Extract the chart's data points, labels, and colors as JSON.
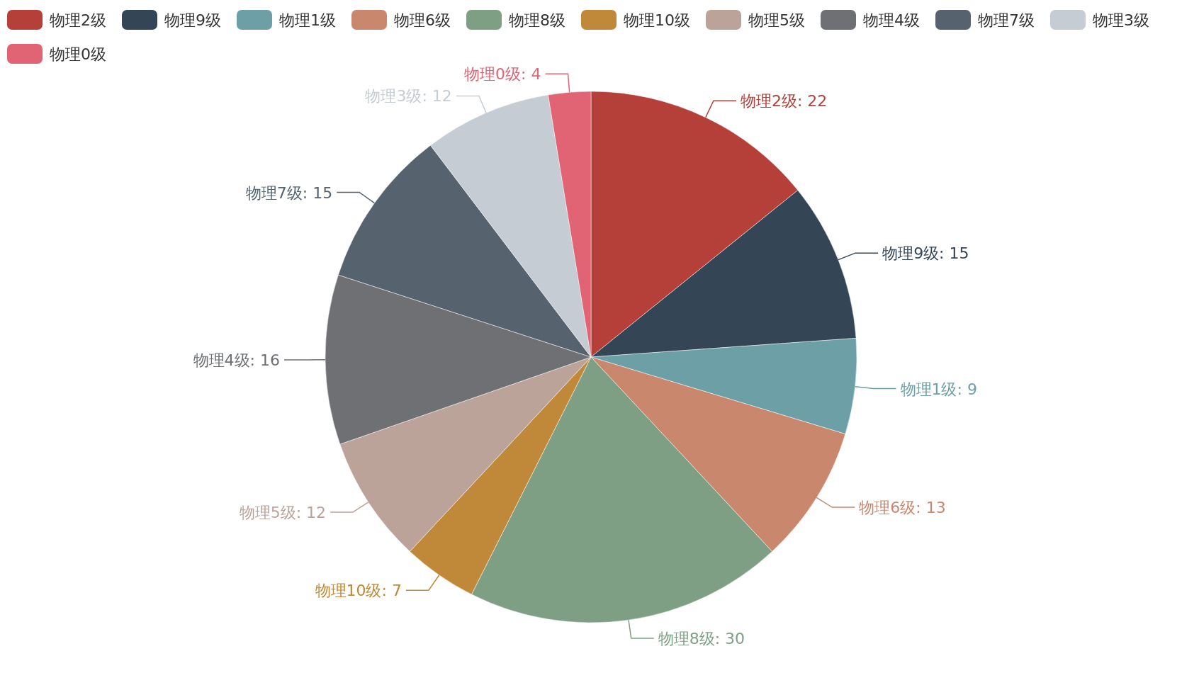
{
  "chart_data": {
    "type": "pie",
    "categories": [
      "物理2级",
      "物理9级",
      "物理1级",
      "物理6级",
      "物理8级",
      "物理10级",
      "物理5级",
      "物理4级",
      "物理7级",
      "物理3级",
      "物理0级"
    ],
    "values": [
      22,
      15,
      9,
      13,
      30,
      7,
      12,
      16,
      15,
      12,
      4
    ],
    "colors": [
      "#b5403a",
      "#344555",
      "#6d9fa6",
      "#c9876d",
      "#7f9f84",
      "#c0893a",
      "#bba39a",
      "#6e7074",
      "#56636f",
      "#c5ccd3",
      "#e06473"
    ],
    "value_labels": [
      "物理2级: 22",
      "物理9级: 15",
      "物理1级: 9",
      "物理6级: 13",
      "物理8级: 30",
      "物理10级: 7",
      "物理5级: 12",
      "物理4级: 16",
      "物理7级: 15",
      "物理3级: 12",
      "物理0级: 4"
    ],
    "legend": "top"
  }
}
